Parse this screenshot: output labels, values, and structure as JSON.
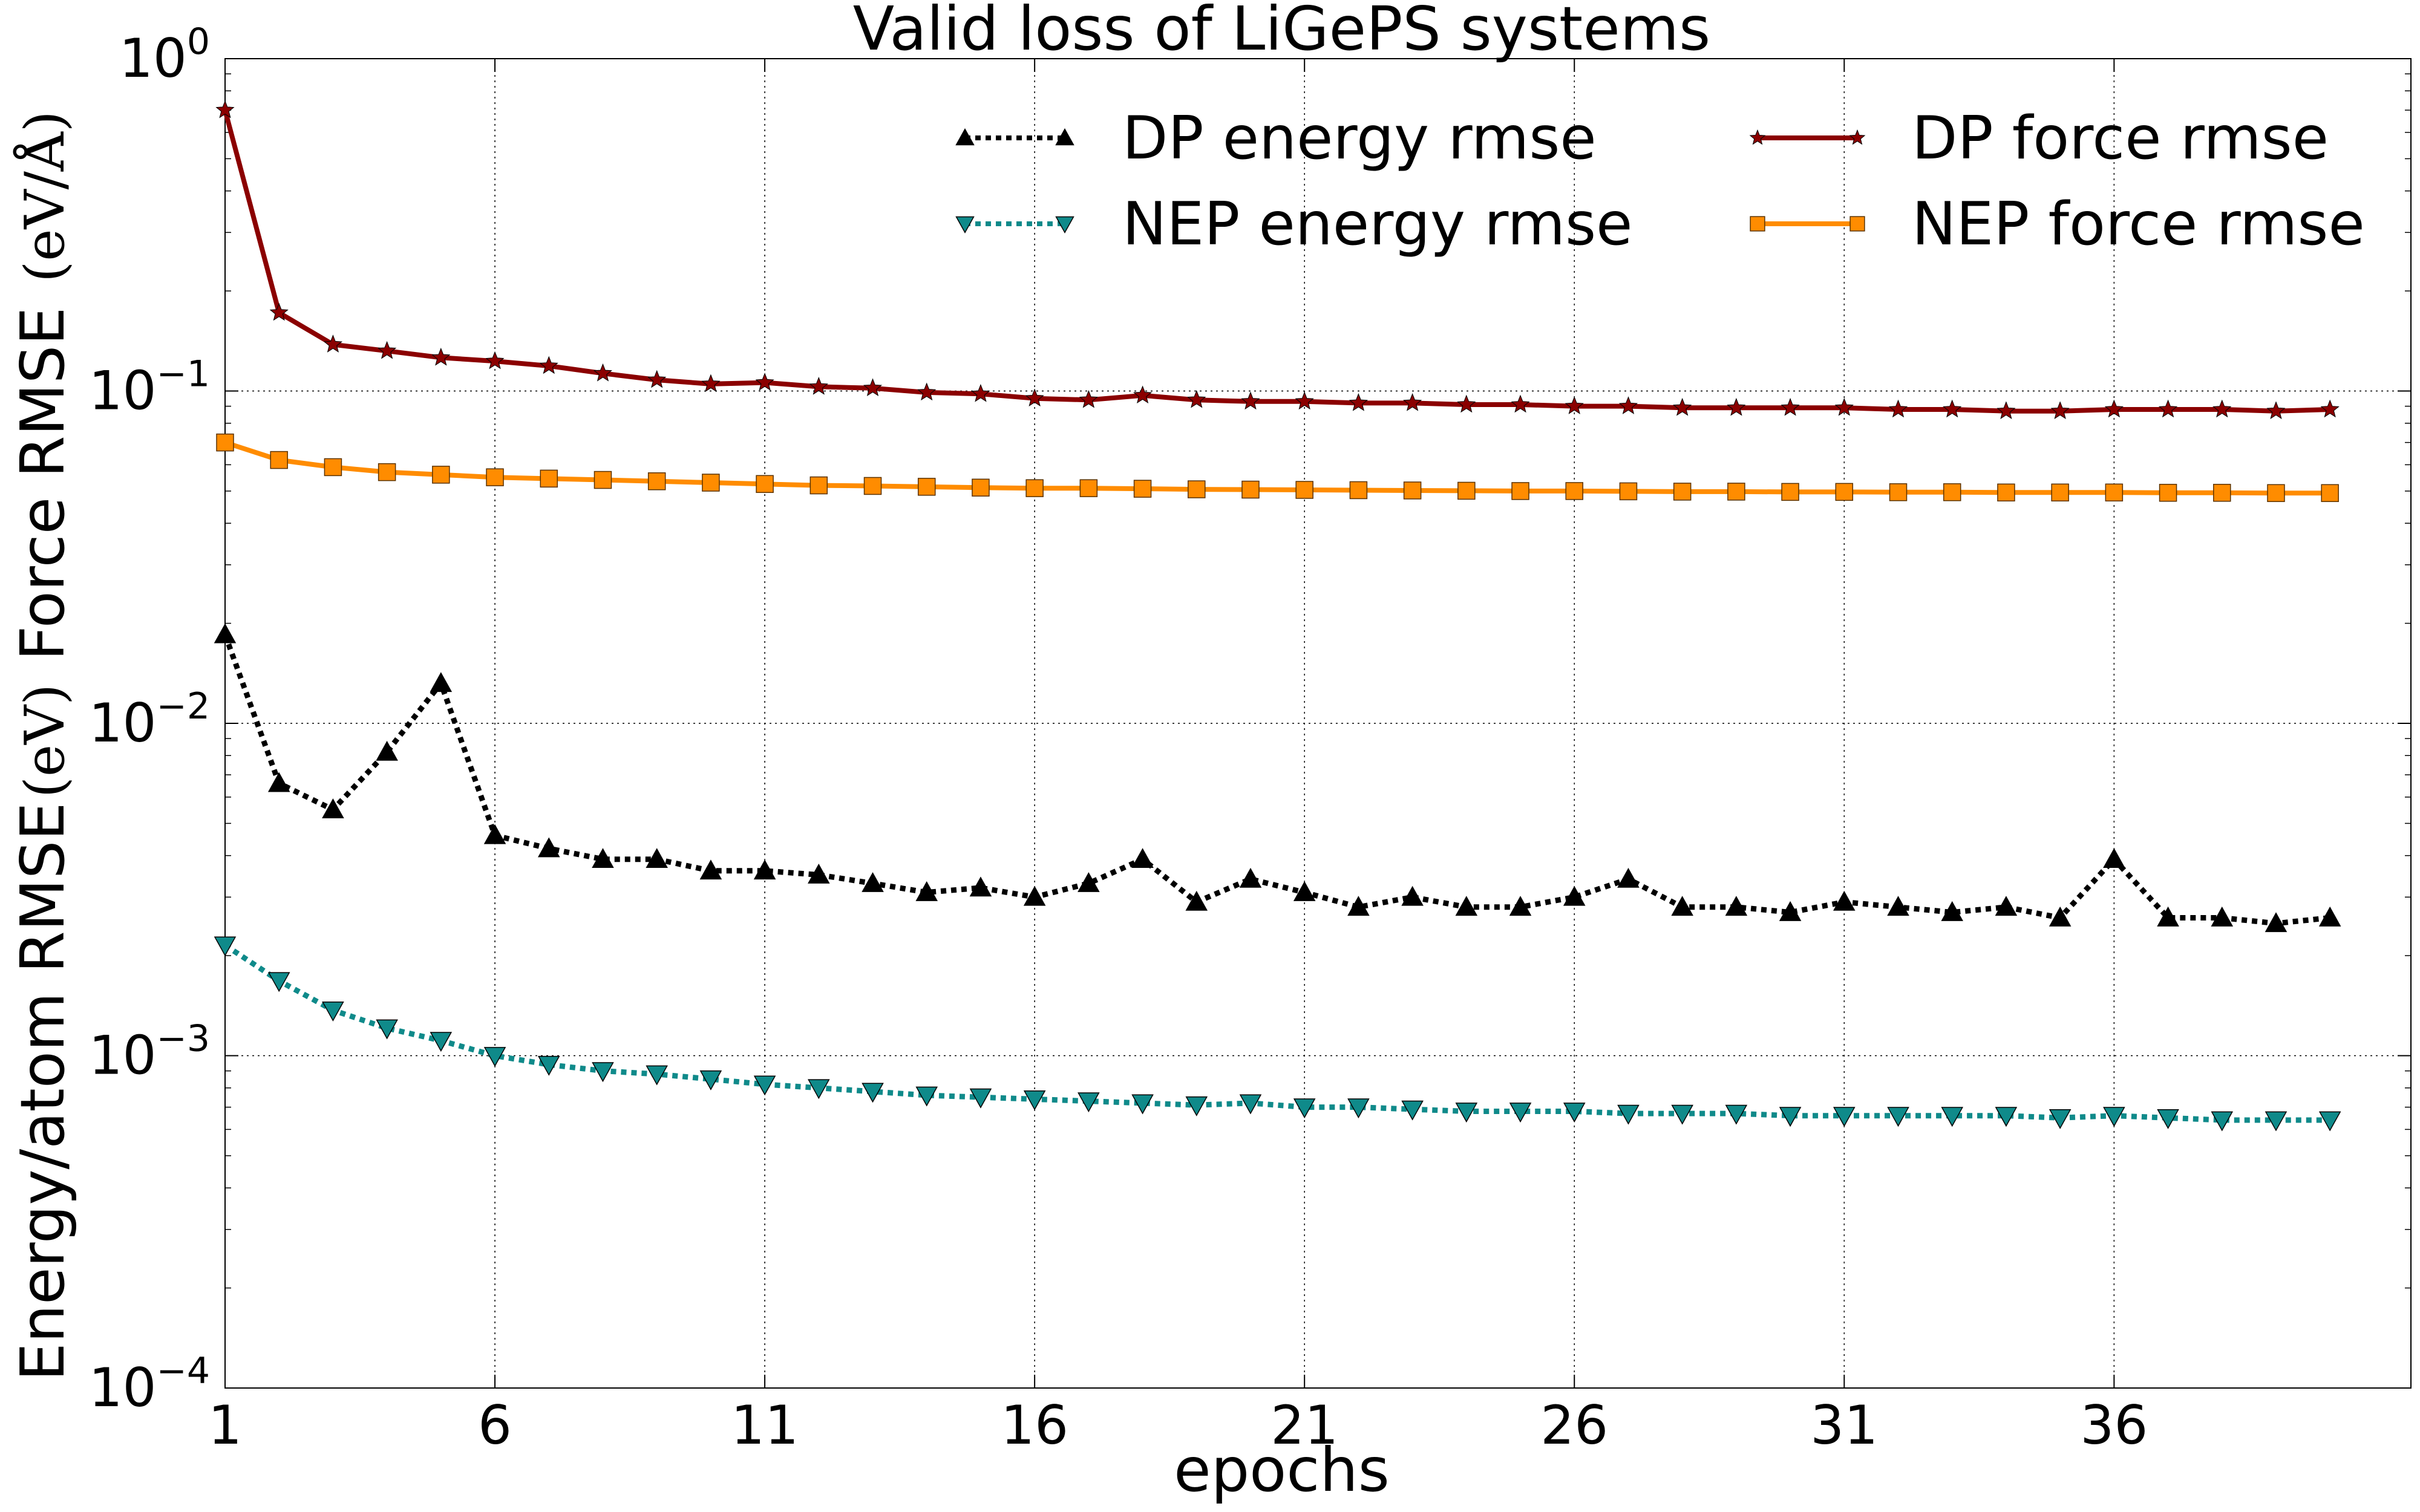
{
  "chart_data": {
    "type": "line",
    "title": "Valid loss of LiGePS systems",
    "xlabel": "epochs",
    "ylabel": "Energy/atom RMSE",
    "ylabel_unit_energy": "(eV)",
    "ylabel_mid": "Force RMSE",
    "ylabel_unit_force": "(eV/Å)",
    "y_scale": "log",
    "xlim": [
      1,
      41.5
    ],
    "ylim": [
      0.0001,
      1
    ],
    "x_ticks": [
      1,
      6,
      11,
      16,
      21,
      26,
      31,
      36
    ],
    "x_tick_labels": [
      "1",
      "6",
      "11",
      "16",
      "21",
      "26",
      "31",
      "36"
    ],
    "y_ticks": [
      {
        "value": 1,
        "base": "10",
        "exp": "0"
      },
      {
        "value": 0.1,
        "base": "10",
        "exp": "−1"
      },
      {
        "value": 0.01,
        "base": "10",
        "exp": "−2"
      },
      {
        "value": 0.001,
        "base": "10",
        "exp": "−3"
      },
      {
        "value": 0.0001,
        "base": "10",
        "exp": "−4"
      }
    ],
    "grid": true,
    "legend_position": "top-right",
    "x": [
      1,
      2,
      3,
      4,
      5,
      6,
      7,
      8,
      9,
      10,
      11,
      12,
      13,
      14,
      15,
      16,
      17,
      18,
      19,
      20,
      21,
      22,
      23,
      24,
      25,
      26,
      27,
      28,
      29,
      30,
      31,
      32,
      33,
      34,
      35,
      36,
      37,
      38,
      39,
      40
    ],
    "series": [
      {
        "name": "DP energy rmse",
        "color": "#000000",
        "style": "dotted",
        "marker": "triangle-up",
        "values": [
          0.0185,
          0.0066,
          0.0055,
          0.0082,
          0.0132,
          0.0046,
          0.0042,
          0.0039,
          0.0039,
          0.0036,
          0.0036,
          0.0035,
          0.0033,
          0.0031,
          0.0032,
          0.003,
          0.0033,
          0.0039,
          0.0029,
          0.0034,
          0.0031,
          0.0028,
          0.003,
          0.0028,
          0.0028,
          0.003,
          0.0034,
          0.0028,
          0.0028,
          0.0027,
          0.0029,
          0.0028,
          0.0027,
          0.0028,
          0.0026,
          0.0039,
          0.0026,
          0.0026,
          0.0025,
          0.0026
        ]
      },
      {
        "name": "NEP energy rmse",
        "color": "#0f8a8a",
        "style": "dotted",
        "marker": "triangle-down",
        "values": [
          0.00215,
          0.00168,
          0.00137,
          0.00121,
          0.00111,
          0.001,
          0.00094,
          0.0009,
          0.00088,
          0.00085,
          0.00082,
          0.0008,
          0.00078,
          0.00076,
          0.00075,
          0.00074,
          0.00073,
          0.00072,
          0.00071,
          0.00072,
          0.0007,
          0.0007,
          0.00069,
          0.00068,
          0.00068,
          0.00068,
          0.00067,
          0.00067,
          0.00067,
          0.00066,
          0.00066,
          0.00066,
          0.00066,
          0.00066,
          0.00065,
          0.00066,
          0.00065,
          0.00064,
          0.00064,
          0.00064
        ]
      },
      {
        "name": "DP force rmse",
        "color": "#8b0000",
        "style": "solid",
        "marker": "star",
        "values": [
          0.7,
          0.172,
          0.138,
          0.132,
          0.126,
          0.123,
          0.119,
          0.113,
          0.108,
          0.105,
          0.106,
          0.103,
          0.102,
          0.099,
          0.098,
          0.095,
          0.094,
          0.097,
          0.094,
          0.093,
          0.093,
          0.092,
          0.092,
          0.091,
          0.091,
          0.09,
          0.09,
          0.089,
          0.089,
          0.089,
          0.089,
          0.088,
          0.088,
          0.087,
          0.087,
          0.088,
          0.088,
          0.088,
          0.087,
          0.088
        ]
      },
      {
        "name": "NEP force rmse",
        "color": "#ff8c00",
        "style": "solid",
        "marker": "square",
        "values": [
          0.07,
          0.062,
          0.059,
          0.057,
          0.056,
          0.055,
          0.0545,
          0.054,
          0.0535,
          0.053,
          0.0525,
          0.052,
          0.0518,
          0.0515,
          0.0512,
          0.051,
          0.051,
          0.0508,
          0.0506,
          0.0505,
          0.0504,
          0.0503,
          0.0502,
          0.0501,
          0.05,
          0.05,
          0.0499,
          0.0498,
          0.0498,
          0.0497,
          0.0497,
          0.0496,
          0.0496,
          0.0495,
          0.0495,
          0.0495,
          0.0494,
          0.0494,
          0.0493,
          0.0493
        ]
      }
    ]
  }
}
